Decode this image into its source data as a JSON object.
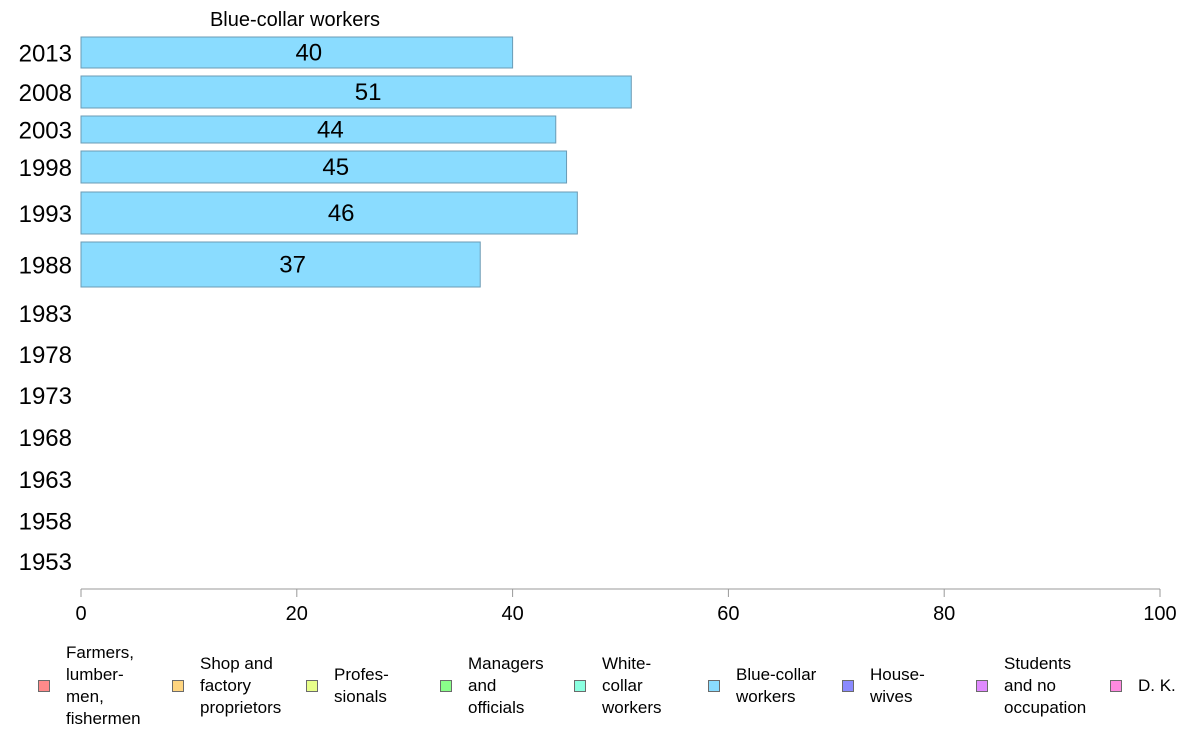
{
  "chart_data": {
    "type": "bar",
    "orientation": "horizontal",
    "title": "Blue-collar workers",
    "categories": [
      "2013",
      "2008",
      "2003",
      "1998",
      "1993",
      "1988",
      "1983",
      "1978",
      "1973",
      "1968",
      "1963",
      "1958",
      "1953"
    ],
    "series": [
      {
        "name": "Blue-collar workers",
        "color": "#8adcff",
        "values": [
          40,
          51,
          44,
          45,
          46,
          37,
          null,
          null,
          null,
          null,
          null,
          null,
          null
        ],
        "labels": [
          "40",
          "51",
          "44",
          "45",
          "46",
          "37",
          "",
          "",
          "",
          "",
          "",
          "",
          ""
        ]
      }
    ],
    "xlim": [
      0,
      100
    ],
    "xticks": [
      "0",
      "20",
      "40",
      "60",
      "80",
      "100"
    ],
    "xlabel": "",
    "ylabel": "",
    "grid": false,
    "legend_position": "bottom"
  },
  "legend": [
    {
      "label": "Farmers,\nlumber-\nmen,\nfishermen",
      "color": "#ff8a8a"
    },
    {
      "label": "Shop and\nfactory\nproprietors",
      "color": "#ffd580"
    },
    {
      "label": "Profes-\nsionals",
      "color": "#e8ff8a"
    },
    {
      "label": "Managers\nand\nofficials",
      "color": "#8aff8a"
    },
    {
      "label": "White-\ncollar\nworkers",
      "color": "#8affe0"
    },
    {
      "label": "Blue-collar\nworkers",
      "color": "#8adcff"
    },
    {
      "label": "House-\nwives",
      "color": "#8a8aff"
    },
    {
      "label": "Students\nand no\noccupation",
      "color": "#e08aff"
    },
    {
      "label": "D. K.",
      "color": "#ff8ae0"
    }
  ]
}
